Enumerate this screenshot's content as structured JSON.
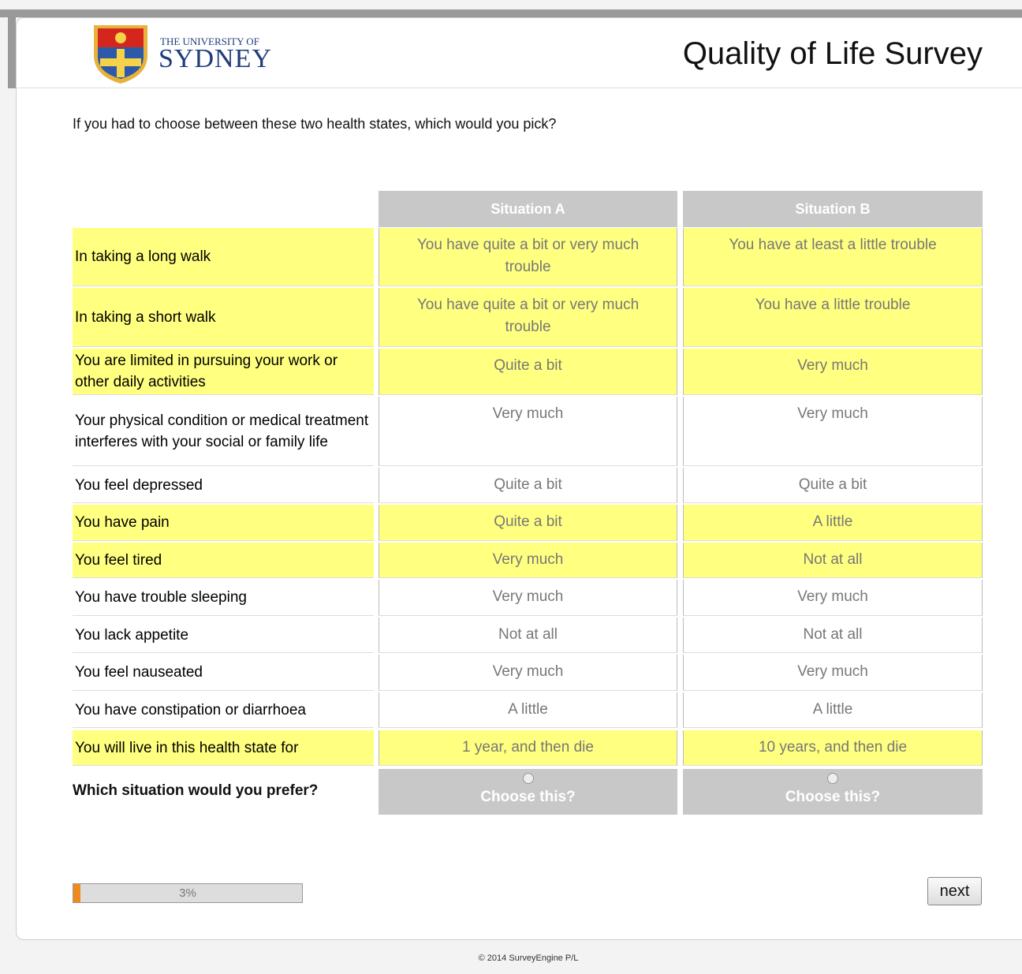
{
  "header": {
    "logo_top": "THE UNIVERSITY OF",
    "logo_name": "SYDNEY",
    "title": "Quality of Life Survey"
  },
  "question": "If you had to choose between these two health states, which would you pick?",
  "table": {
    "columns": [
      "Situation A",
      "Situation B"
    ],
    "rows": [
      {
        "label": "In taking a long walk",
        "values": [
          "You have quite a bit or very much trouble",
          "You have at least a little trouble"
        ],
        "highlighted": true
      },
      {
        "label": "In taking a short walk",
        "values": [
          "You have quite a bit or very much trouble",
          "You have a little trouble"
        ],
        "highlighted": true
      },
      {
        "label": "You are limited in pursuing your work or other daily activities",
        "values": [
          "Quite a bit",
          "Very much"
        ],
        "highlighted": true
      },
      {
        "label": "Your physical condition or medical treatment interferes with your social or family life",
        "values": [
          "Very much",
          "Very much"
        ],
        "highlighted": false
      },
      {
        "label": "You feel depressed",
        "values": [
          "Quite a bit",
          "Quite a bit"
        ],
        "highlighted": false
      },
      {
        "label": "You have pain",
        "values": [
          "Quite a bit",
          "A little"
        ],
        "highlighted": true
      },
      {
        "label": "You feel tired",
        "values": [
          "Very much",
          "Not at all"
        ],
        "highlighted": true
      },
      {
        "label": "You have trouble sleeping",
        "values": [
          "Very much",
          "Very much"
        ],
        "highlighted": false
      },
      {
        "label": "You lack appetite",
        "values": [
          "Not at all",
          "Not at all"
        ],
        "highlighted": false
      },
      {
        "label": "You feel nauseated",
        "values": [
          "Very much",
          "Very much"
        ],
        "highlighted": false
      },
      {
        "label": "You have constipation or diarrhoea",
        "values": [
          "A little",
          "A little"
        ],
        "highlighted": false
      },
      {
        "label": "You will live in this health state for",
        "values": [
          "1 year, and then die",
          "10 years, and then die"
        ],
        "highlighted": true
      }
    ],
    "prompt": "Which situation would you prefer?",
    "options": [
      "Choose this?",
      "Choose this?"
    ]
  },
  "progress": {
    "value": 3,
    "label": "3%"
  },
  "next_button": "next",
  "footer": "© 2014 SurveyEngine P/L"
}
